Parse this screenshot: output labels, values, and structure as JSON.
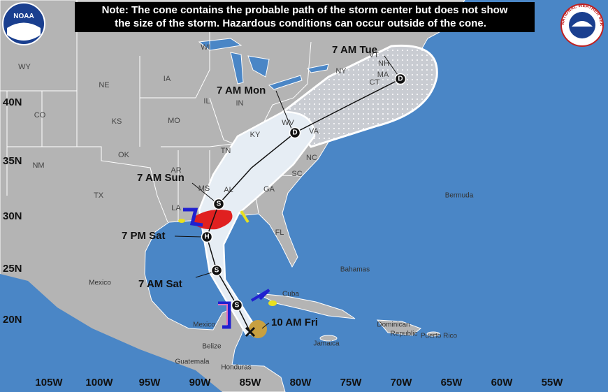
{
  "note": {
    "line1": "Note: The cone contains the probable path of the storm center but does not show",
    "line2": "the size of the storm. Hazardous conditions can occur outside of the cone."
  },
  "logos": {
    "noaa": "NOAA",
    "nws": "NATIONAL WEATHER SERVICE"
  },
  "current_position": {
    "label": "10 AM Fri"
  },
  "forecast_points": [
    {
      "label": "7 AM Sat",
      "symbol": "S"
    },
    {
      "label": "7 PM Sat",
      "symbol": "H"
    },
    {
      "label": "7 AM Sun",
      "symbol": "S"
    },
    {
      "label": "7 AM Mon",
      "symbol": "D"
    },
    {
      "label": "7 AM Tue",
      "symbol": "D"
    }
  ],
  "extra_symbols": [
    "S"
  ],
  "latitude_labels": [
    "40N",
    "35N",
    "30N",
    "25N",
    "20N"
  ],
  "longitude_labels": [
    "105W",
    "100W",
    "95W",
    "90W",
    "85W",
    "80W",
    "75W",
    "70W",
    "65W",
    "60W",
    "55W"
  ],
  "state_labels": [
    "WY",
    "NE",
    "IA",
    "WI",
    "IL",
    "IN",
    "CO",
    "KS",
    "MO",
    "KY",
    "WV",
    "VA",
    "TN",
    "NC",
    "OK",
    "NM",
    "AR",
    "SC",
    "GA",
    "AL",
    "MS",
    "TX",
    "LA",
    "FL",
    "NY",
    "VT",
    "NH",
    "MA",
    "CT"
  ],
  "place_labels": [
    "Bermuda",
    "Bahamas",
    "Cuba",
    "Mexico",
    "Mexico",
    "Jamaica",
    "Dominican",
    "Republic",
    "Puerto Rico",
    "Belize",
    "Guatemala",
    "Honduras"
  ]
}
